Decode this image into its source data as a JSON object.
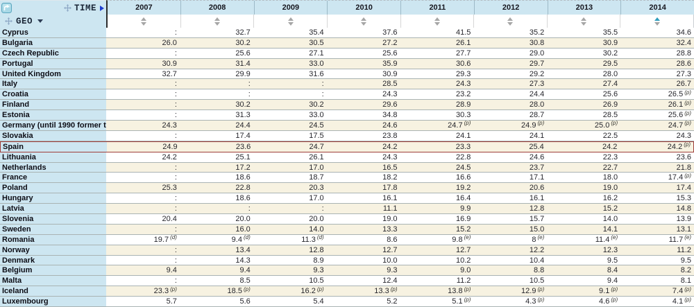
{
  "header": {
    "time_label": "TIME",
    "geo_label": "GEO",
    "years": [
      "2007",
      "2008",
      "2009",
      "2010",
      "2011",
      "2012",
      "2013",
      "2014"
    ],
    "sorted_year": "2014",
    "sort_direction": "up"
  },
  "colors": {
    "header_bg": "#cde6f1",
    "stripe_cream": "#f7f2e1",
    "stripe_white": "#ffffff",
    "highlight_border": "#9e3c38",
    "sort_active": "#2f9dbd",
    "sort_inactive": "#a6a6a6"
  },
  "missing_symbol": ":",
  "rows": [
    {
      "name": "Cyprus",
      "values": [
        ":",
        "32.7",
        "35.4",
        "37.6",
        "41.5",
        "35.2",
        "35.5",
        "34.6"
      ],
      "flags": [
        "",
        "",
        "",
        "",
        "",
        "",
        "",
        ""
      ],
      "highlighted": false
    },
    {
      "name": "Bulgaria",
      "values": [
        "26.0",
        "30.2",
        "30.5",
        "27.2",
        "26.1",
        "30.8",
        "30.9",
        "32.4"
      ],
      "flags": [
        "",
        "",
        "",
        "",
        "",
        "",
        "",
        ""
      ],
      "highlighted": false
    },
    {
      "name": "Czech Republic",
      "values": [
        ":",
        "25.6",
        "27.1",
        "25.6",
        "27.7",
        "29.0",
        "30.2",
        "28.8"
      ],
      "flags": [
        "",
        "",
        "",
        "",
        "",
        "",
        "",
        ""
      ],
      "highlighted": false
    },
    {
      "name": "Portugal",
      "values": [
        "30.9",
        "31.4",
        "33.0",
        "35.9",
        "30.6",
        "29.7",
        "29.5",
        "28.6"
      ],
      "flags": [
        "",
        "",
        "",
        "",
        "",
        "",
        "",
        ""
      ],
      "highlighted": false
    },
    {
      "name": "United Kingdom",
      "values": [
        "32.7",
        "29.9",
        "31.6",
        "30.9",
        "29.3",
        "29.2",
        "28.0",
        "27.3"
      ],
      "flags": [
        "",
        "",
        "",
        "",
        "",
        "",
        "",
        ""
      ],
      "highlighted": false
    },
    {
      "name": "Italy",
      "values": [
        ":",
        ":",
        ":",
        "28.5",
        "24.3",
        "27.3",
        "27.4",
        "26.7"
      ],
      "flags": [
        "",
        "",
        "",
        "",
        "",
        "",
        "",
        ""
      ],
      "highlighted": false
    },
    {
      "name": "Croatia",
      "values": [
        ":",
        ":",
        ":",
        "24.3",
        "23.2",
        "24.4",
        "25.6",
        "26.5"
      ],
      "flags": [
        "",
        "",
        "",
        "",
        "",
        "",
        "",
        "p"
      ],
      "highlighted": false
    },
    {
      "name": "Finland",
      "values": [
        ":",
        "30.2",
        "30.2",
        "29.6",
        "28.9",
        "28.0",
        "26.9",
        "26.1"
      ],
      "flags": [
        "",
        "",
        "",
        "",
        "",
        "",
        "",
        "p"
      ],
      "highlighted": false
    },
    {
      "name": "Estonia",
      "values": [
        ":",
        "31.3",
        "33.0",
        "34.8",
        "30.3",
        "28.7",
        "28.5",
        "25.6"
      ],
      "flags": [
        "",
        "",
        "",
        "",
        "",
        "",
        "",
        "p"
      ],
      "highlighted": false
    },
    {
      "name": "Germany (until 1990 former t",
      "values": [
        "24.3",
        "24.4",
        "24.5",
        "24.6",
        "24.7",
        "24.9",
        "25.0",
        "24.7"
      ],
      "flags": [
        "",
        "",
        "",
        "",
        "p",
        "p",
        "p",
        "p"
      ],
      "highlighted": false
    },
    {
      "name": "Slovakia",
      "values": [
        ":",
        "17.4",
        "17.5",
        "23.8",
        "24.1",
        "24.1",
        "22.5",
        "24.3"
      ],
      "flags": [
        "",
        "",
        "",
        "",
        "",
        "",
        "",
        ""
      ],
      "highlighted": false
    },
    {
      "name": "Spain",
      "values": [
        "24.9",
        "23.6",
        "24.7",
        "24.2",
        "23.3",
        "25.4",
        "24.2",
        "24.2"
      ],
      "flags": [
        "",
        "",
        "",
        "",
        "",
        "",
        "",
        "p"
      ],
      "highlighted": true
    },
    {
      "name": "Lithuania",
      "values": [
        "24.2",
        "25.1",
        "26.1",
        "24.3",
        "22.8",
        "24.6",
        "22.3",
        "23.6"
      ],
      "flags": [
        "",
        "",
        "",
        "",
        "",
        "",
        "",
        ""
      ],
      "highlighted": false
    },
    {
      "name": "Netherlands",
      "values": [
        ":",
        "17.2",
        "17.0",
        "16.5",
        "24.5",
        "23.7",
        "22.7",
        "21.8"
      ],
      "flags": [
        "",
        "",
        "",
        "",
        "",
        "",
        "",
        ""
      ],
      "highlighted": false
    },
    {
      "name": "France",
      "values": [
        ":",
        "18.6",
        "18.7",
        "18.2",
        "16.6",
        "17.1",
        "18.0",
        "17.4"
      ],
      "flags": [
        "",
        "",
        "",
        "",
        "",
        "",
        "",
        "p"
      ],
      "highlighted": false
    },
    {
      "name": "Poland",
      "values": [
        "25.3",
        "22.8",
        "20.3",
        "17.8",
        "19.2",
        "20.6",
        "19.0",
        "17.4"
      ],
      "flags": [
        "",
        "",
        "",
        "",
        "",
        "",
        "",
        ""
      ],
      "highlighted": false
    },
    {
      "name": "Hungary",
      "values": [
        ":",
        "18.6",
        "17.0",
        "16.1",
        "16.4",
        "16.1",
        "16.2",
        "15.3"
      ],
      "flags": [
        "",
        "",
        "",
        "",
        "",
        "",
        "",
        ""
      ],
      "highlighted": false
    },
    {
      "name": "Latvia",
      "values": [
        ":",
        ":",
        ":",
        "11.1",
        "9.9",
        "12.8",
        "15.2",
        "14.8"
      ],
      "flags": [
        "",
        "",
        "",
        "",
        "",
        "",
        "",
        ""
      ],
      "highlighted": false
    },
    {
      "name": "Slovenia",
      "values": [
        "20.4",
        "20.0",
        "20.0",
        "19.0",
        "16.9",
        "15.7",
        "14.0",
        "13.9"
      ],
      "flags": [
        "",
        "",
        "",
        "",
        "",
        "",
        "",
        ""
      ],
      "highlighted": false
    },
    {
      "name": "Sweden",
      "values": [
        ":",
        "16.0",
        "14.0",
        "13.3",
        "15.2",
        "15.0",
        "14.1",
        "13.1"
      ],
      "flags": [
        "",
        "",
        "",
        "",
        "",
        "",
        "",
        ""
      ],
      "highlighted": false
    },
    {
      "name": "Romania",
      "values": [
        "19.7",
        "9.4",
        "11.3",
        "8.6",
        "9.8",
        "8",
        "11.4",
        "11.7"
      ],
      "flags": [
        "d",
        "d",
        "d",
        "",
        "e",
        "e",
        "e",
        "e"
      ],
      "highlighted": false
    },
    {
      "name": "Norway",
      "values": [
        ":",
        "13.4",
        "12.8",
        "12.7",
        "12.7",
        "12.2",
        "12.3",
        "11.2"
      ],
      "flags": [
        "",
        "",
        "",
        "",
        "",
        "",
        "",
        ""
      ],
      "highlighted": false
    },
    {
      "name": "Denmark",
      "values": [
        ":",
        "14.3",
        "8.9",
        "10.0",
        "10.2",
        "10.4",
        "9.5",
        "9.5"
      ],
      "flags": [
        "",
        "",
        "",
        "",
        "",
        "",
        "",
        ""
      ],
      "highlighted": false
    },
    {
      "name": "Belgium",
      "values": [
        "9.4",
        "9.4",
        "9.3",
        "9.3",
        "9.0",
        "8.8",
        "8.4",
        "8.2"
      ],
      "flags": [
        "",
        "",
        "",
        "",
        "",
        "",
        "",
        ""
      ],
      "highlighted": false
    },
    {
      "name": "Malta",
      "values": [
        ":",
        "8.5",
        "10.5",
        "12.4",
        "11.2",
        "10.5",
        "9.4",
        "8.1"
      ],
      "flags": [
        "",
        "",
        "",
        "",
        "",
        "",
        "",
        ""
      ],
      "highlighted": false
    },
    {
      "name": "Iceland",
      "values": [
        "23.3",
        "18.5",
        "16.2",
        "13.3",
        "13.8",
        "12.9",
        "9.1",
        "7.4"
      ],
      "flags": [
        "p",
        "p",
        "p",
        "p",
        "p",
        "p",
        "p",
        "p"
      ],
      "highlighted": false
    },
    {
      "name": "Luxembourg",
      "values": [
        "5.7",
        "5.6",
        "5.4",
        "5.2",
        "5.1",
        "4.3",
        "4.6",
        "4.1"
      ],
      "flags": [
        "",
        "",
        "",
        "",
        "p",
        "p",
        "p",
        "p"
      ],
      "highlighted": false
    }
  ]
}
